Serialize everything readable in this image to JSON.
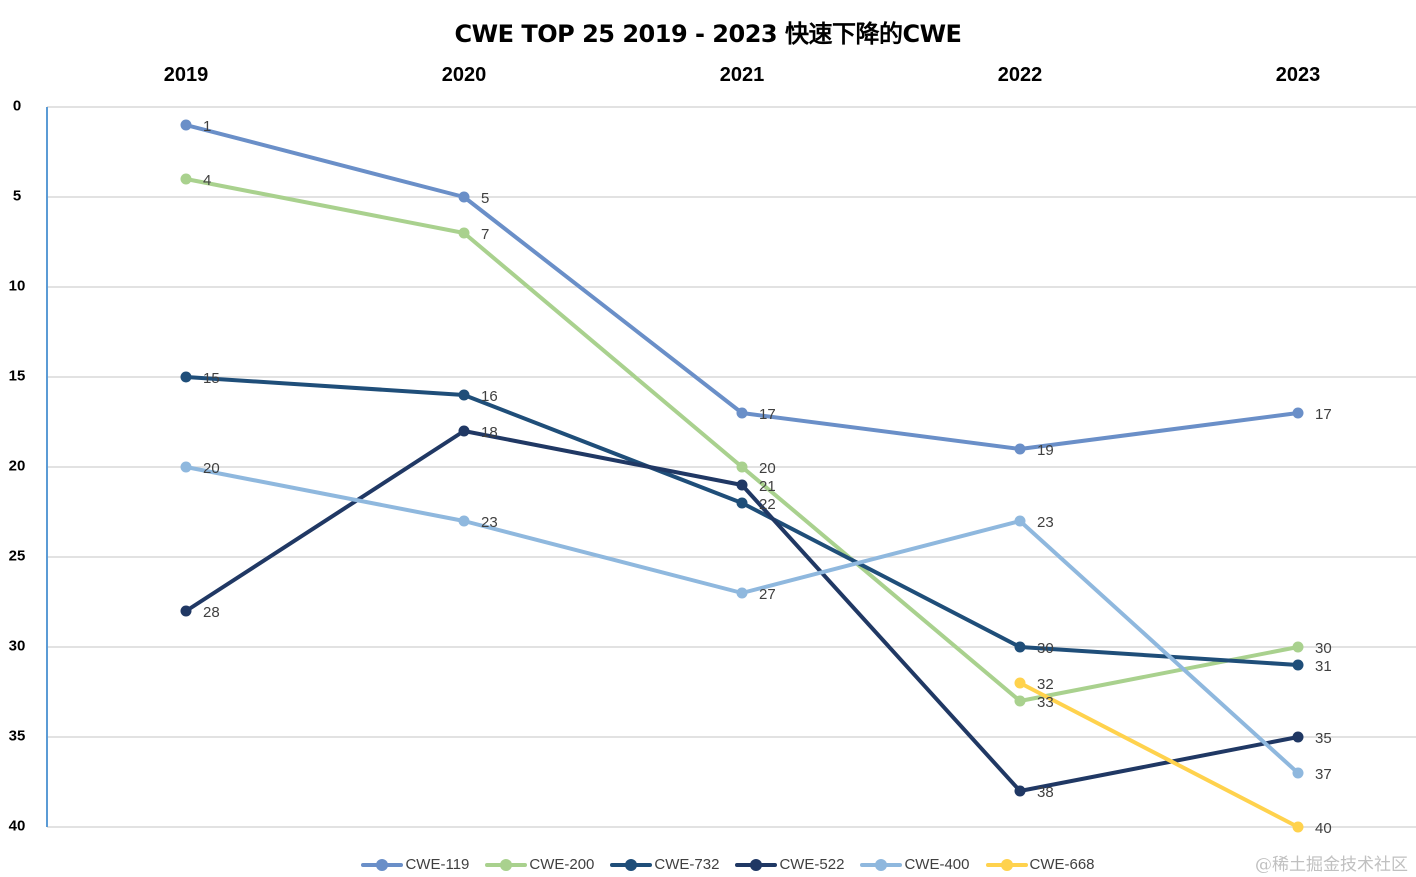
{
  "title": "CWE TOP 25 2019 - 2023 快速下降的CWE",
  "watermark": "@稀土掘金技术社区",
  "x_ticks": [
    "2019",
    "2020",
    "2021",
    "2022",
    "2023"
  ],
  "y_ticks": [
    "0",
    "5",
    "10",
    "15",
    "20",
    "25",
    "30",
    "35",
    "40"
  ],
  "legend": [
    {
      "label": "CWE-119",
      "color": "#6a8fc8"
    },
    {
      "label": "CWE-200",
      "color": "#a9d18e"
    },
    {
      "label": "CWE-732",
      "color": "#1f4e79"
    },
    {
      "label": "CWE-522",
      "color": "#203864"
    },
    {
      "label": "CWE-400",
      "color": "#8fb8de"
    },
    {
      "label": "CWE-668",
      "color": "#ffd24d"
    }
  ],
  "chart_data": {
    "type": "line",
    "title": "CWE TOP 25 2019 - 2023 快速下降的CWE",
    "xlabel": "",
    "ylabel": "",
    "categories": [
      "2019",
      "2020",
      "2021",
      "2022",
      "2023"
    ],
    "x_axis_position": "top",
    "y_axis_inverted": true,
    "ylim": [
      0,
      40
    ],
    "y_ticks": [
      0,
      5,
      10,
      15,
      20,
      25,
      30,
      35,
      40
    ],
    "grid": true,
    "legend_position": "bottom",
    "data_labels": true,
    "series": [
      {
        "name": "CWE-119",
        "color": "#6a8fc8",
        "values": [
          1,
          5,
          17,
          19,
          17
        ]
      },
      {
        "name": "CWE-200",
        "color": "#a9d18e",
        "values": [
          4,
          7,
          20,
          33,
          30
        ]
      },
      {
        "name": "CWE-732",
        "color": "#1f4e79",
        "values": [
          15,
          16,
          22,
          30,
          31
        ]
      },
      {
        "name": "CWE-522",
        "color": "#203864",
        "values": [
          28,
          18,
          21,
          38,
          35
        ]
      },
      {
        "name": "CWE-400",
        "color": "#8fb8de",
        "values": [
          20,
          23,
          27,
          23,
          37
        ]
      },
      {
        "name": "CWE-668",
        "color": "#ffd24d",
        "values": [
          null,
          null,
          null,
          32,
          40
        ]
      }
    ]
  }
}
